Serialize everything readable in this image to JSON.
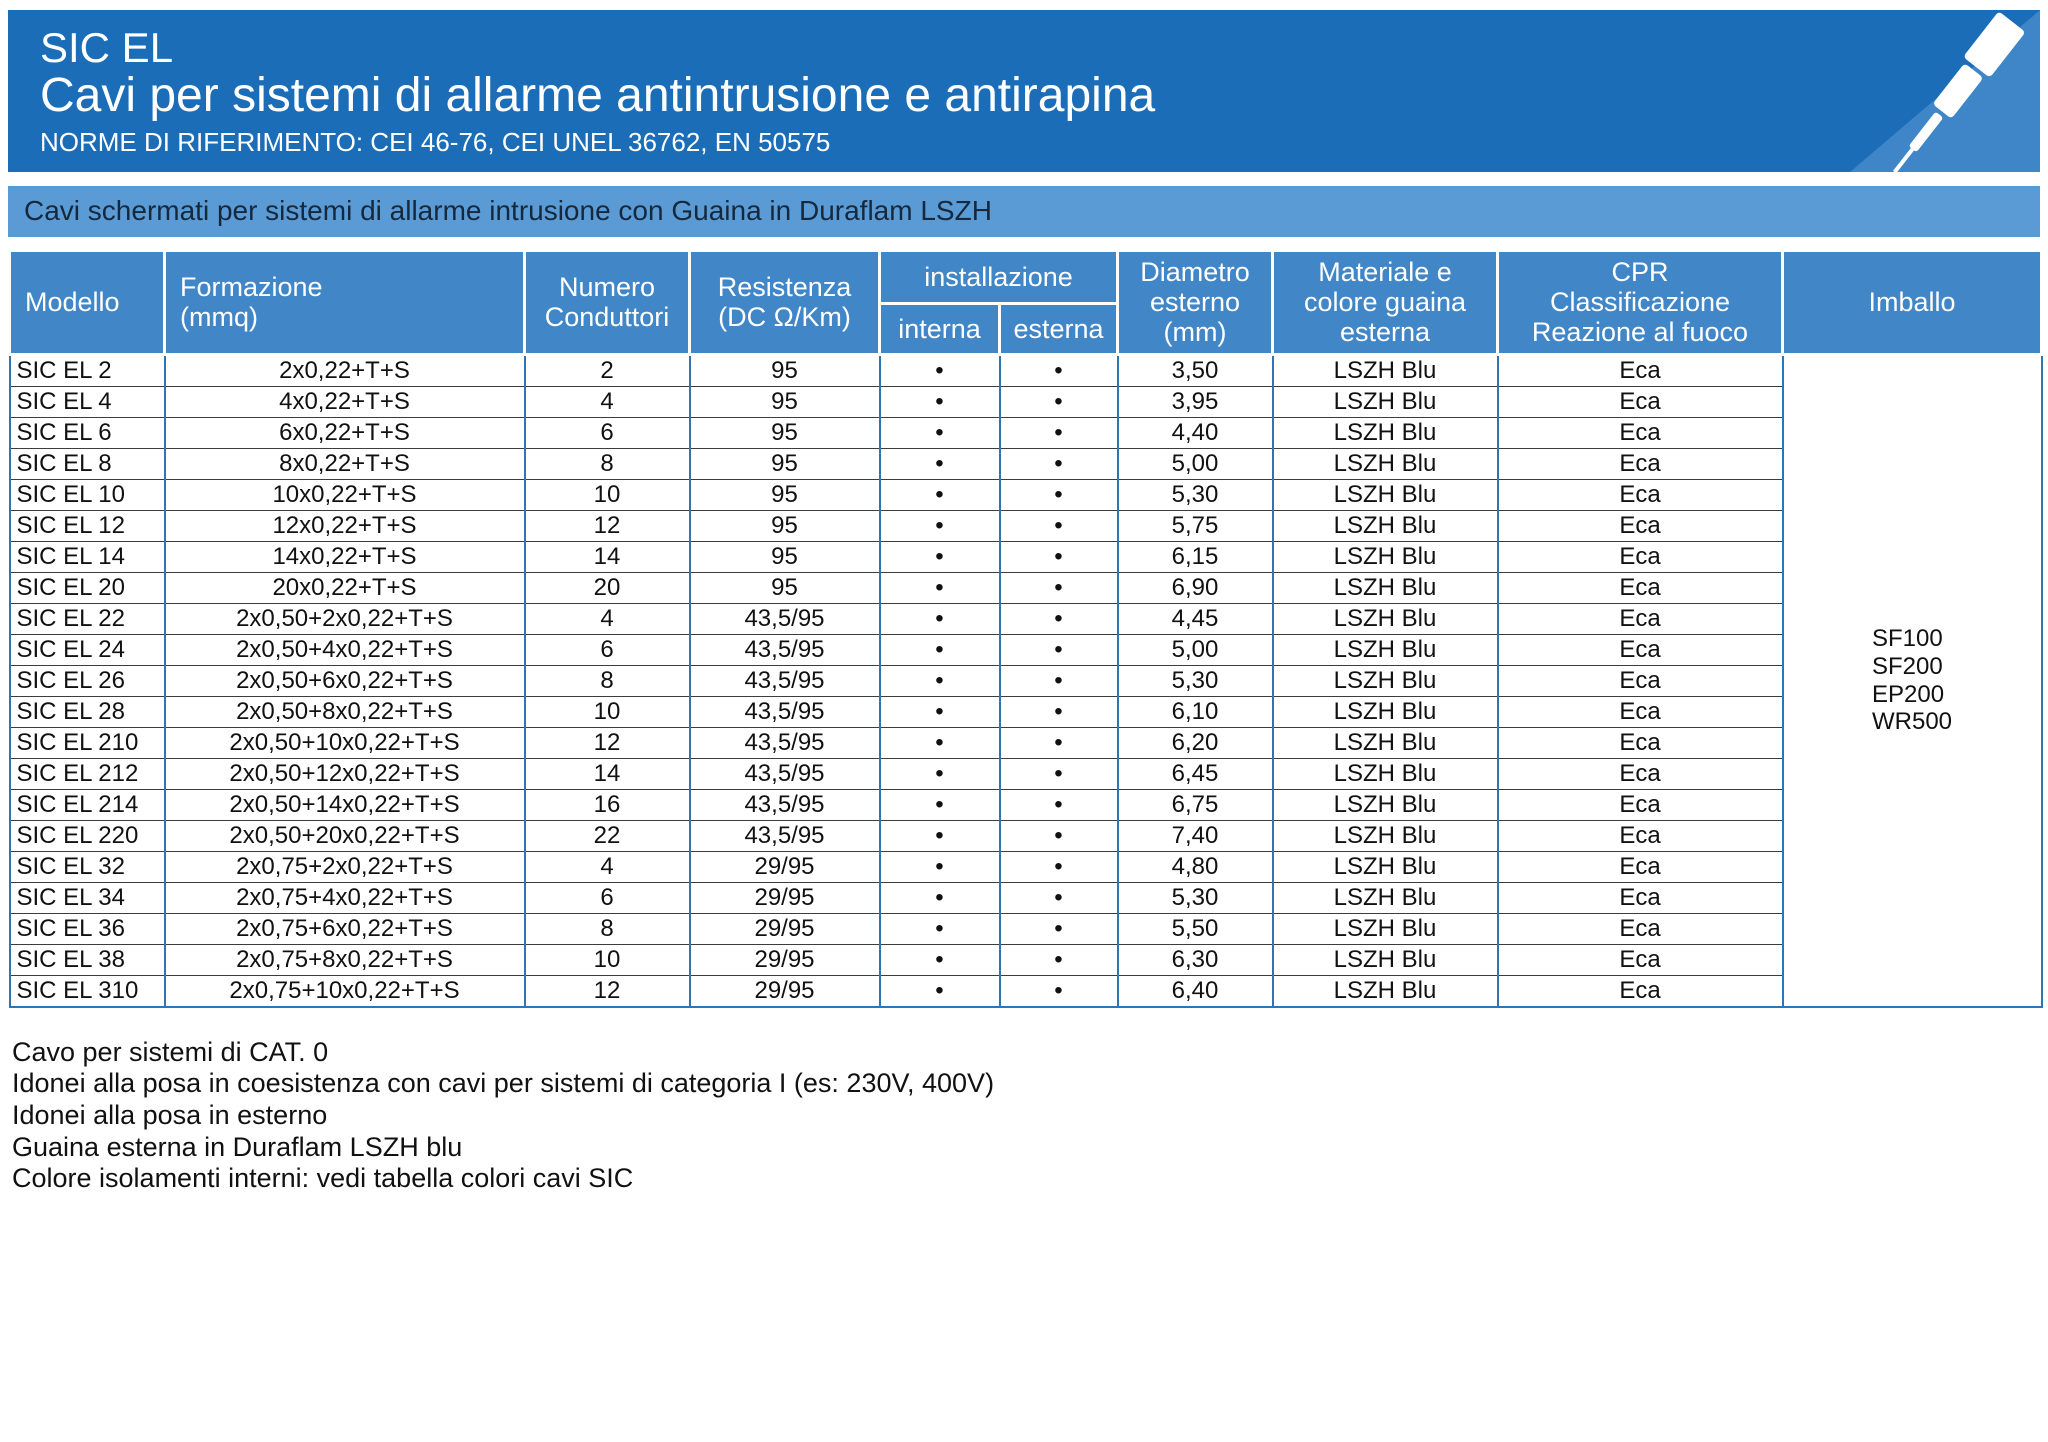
{
  "header": {
    "product": "SIC EL",
    "title": "Cavi per sistemi di allarme antintrusione e antirapina",
    "norms": "NORME DI RIFERIMENTO: CEI 46-76, CEI UNEL 36762, EN 50575"
  },
  "subbanner": "Cavi schermati per sistemi di allarme intrusione con Guaina in Duraflam LSZH",
  "colors": {
    "banner_blue": "#1b6db8",
    "subbanner_blue": "#5b9bd5",
    "table_header_blue": "#4186c6",
    "grid_blue": "#2e75b6"
  },
  "table": {
    "headers": {
      "modello": "Modello",
      "formazione": "Formazione\n(mmq)",
      "conduttori": "Numero\nConduttori",
      "resistenza": "Resistenza\n(DC Ω/Km)",
      "installazione": "installazione",
      "interna": "interna",
      "esterna": "esterna",
      "diametro": "Diametro\nesterno\n(mm)",
      "guaina": "Materiale e\ncolore guaina\nesterna",
      "cpr": "CPR\nClassificazione\nReazione al fuoco",
      "imballo": "Imballo"
    },
    "rows": [
      {
        "modello": "SIC EL 2",
        "formazione": "2x0,22+T+S",
        "conduttori": "2",
        "resistenza": "95",
        "interna": "•",
        "esterna": "•",
        "diametro": "3,50",
        "guaina": "LSZH Blu",
        "cpr": "Eca"
      },
      {
        "modello": "SIC EL 4",
        "formazione": "4x0,22+T+S",
        "conduttori": "4",
        "resistenza": "95",
        "interna": "•",
        "esterna": "•",
        "diametro": "3,95",
        "guaina": "LSZH Blu",
        "cpr": "Eca"
      },
      {
        "modello": "SIC EL 6",
        "formazione": "6x0,22+T+S",
        "conduttori": "6",
        "resistenza": "95",
        "interna": "•",
        "esterna": "•",
        "diametro": "4,40",
        "guaina": "LSZH Blu",
        "cpr": "Eca"
      },
      {
        "modello": "SIC EL 8",
        "formazione": "8x0,22+T+S",
        "conduttori": "8",
        "resistenza": "95",
        "interna": "•",
        "esterna": "•",
        "diametro": "5,00",
        "guaina": "LSZH Blu",
        "cpr": "Eca"
      },
      {
        "modello": "SIC EL 10",
        "formazione": "10x0,22+T+S",
        "conduttori": "10",
        "resistenza": "95",
        "interna": "•",
        "esterna": "•",
        "diametro": "5,30",
        "guaina": "LSZH Blu",
        "cpr": "Eca"
      },
      {
        "modello": "SIC EL 12",
        "formazione": "12x0,22+T+S",
        "conduttori": "12",
        "resistenza": "95",
        "interna": "•",
        "esterna": "•",
        "diametro": "5,75",
        "guaina": "LSZH Blu",
        "cpr": "Eca"
      },
      {
        "modello": "SIC EL 14",
        "formazione": "14x0,22+T+S",
        "conduttori": "14",
        "resistenza": "95",
        "interna": "•",
        "esterna": "•",
        "diametro": "6,15",
        "guaina": "LSZH Blu",
        "cpr": "Eca"
      },
      {
        "modello": "SIC EL 20",
        "formazione": "20x0,22+T+S",
        "conduttori": "20",
        "resistenza": "95",
        "interna": "•",
        "esterna": "•",
        "diametro": "6,90",
        "guaina": "LSZH Blu",
        "cpr": "Eca"
      },
      {
        "modello": "SIC EL 22",
        "formazione": "2x0,50+2x0,22+T+S",
        "conduttori": "4",
        "resistenza": "43,5/95",
        "interna": "•",
        "esterna": "•",
        "diametro": "4,45",
        "guaina": "LSZH Blu",
        "cpr": "Eca"
      },
      {
        "modello": "SIC EL 24",
        "formazione": "2x0,50+4x0,22+T+S",
        "conduttori": "6",
        "resistenza": "43,5/95",
        "interna": "•",
        "esterna": "•",
        "diametro": "5,00",
        "guaina": "LSZH Blu",
        "cpr": "Eca"
      },
      {
        "modello": "SIC EL 26",
        "formazione": "2x0,50+6x0,22+T+S",
        "conduttori": "8",
        "resistenza": "43,5/95",
        "interna": "•",
        "esterna": "•",
        "diametro": "5,30",
        "guaina": "LSZH Blu",
        "cpr": "Eca"
      },
      {
        "modello": "SIC EL 28",
        "formazione": "2x0,50+8x0,22+T+S",
        "conduttori": "10",
        "resistenza": "43,5/95",
        "interna": "•",
        "esterna": "•",
        "diametro": "6,10",
        "guaina": "LSZH Blu",
        "cpr": "Eca"
      },
      {
        "modello": "SIC EL 210",
        "formazione": "2x0,50+10x0,22+T+S",
        "conduttori": "12",
        "resistenza": "43,5/95",
        "interna": "•",
        "esterna": "•",
        "diametro": "6,20",
        "guaina": "LSZH Blu",
        "cpr": "Eca"
      },
      {
        "modello": "SIC EL 212",
        "formazione": "2x0,50+12x0,22+T+S",
        "conduttori": "14",
        "resistenza": "43,5/95",
        "interna": "•",
        "esterna": "•",
        "diametro": "6,45",
        "guaina": "LSZH Blu",
        "cpr": "Eca"
      },
      {
        "modello": "SIC EL 214",
        "formazione": "2x0,50+14x0,22+T+S",
        "conduttori": "16",
        "resistenza": "43,5/95",
        "interna": "•",
        "esterna": "•",
        "diametro": "6,75",
        "guaina": "LSZH Blu",
        "cpr": "Eca"
      },
      {
        "modello": "SIC EL 220",
        "formazione": "2x0,50+20x0,22+T+S",
        "conduttori": "22",
        "resistenza": "43,5/95",
        "interna": "•",
        "esterna": "•",
        "diametro": "7,40",
        "guaina": "LSZH Blu",
        "cpr": "Eca"
      },
      {
        "modello": "SIC EL 32",
        "formazione": "2x0,75+2x0,22+T+S",
        "conduttori": "4",
        "resistenza": "29/95",
        "interna": "•",
        "esterna": "•",
        "diametro": "4,80",
        "guaina": "LSZH Blu",
        "cpr": "Eca"
      },
      {
        "modello": "SIC EL 34",
        "formazione": "2x0,75+4x0,22+T+S",
        "conduttori": "6",
        "resistenza": "29/95",
        "interna": "•",
        "esterna": "•",
        "diametro": "5,30",
        "guaina": "LSZH Blu",
        "cpr": "Eca"
      },
      {
        "modello": "SIC EL 36",
        "formazione": "2x0,75+6x0,22+T+S",
        "conduttori": "8",
        "resistenza": "29/95",
        "interna": "•",
        "esterna": "•",
        "diametro": "5,50",
        "guaina": "LSZH Blu",
        "cpr": "Eca"
      },
      {
        "modello": "SIC EL 38",
        "formazione": "2x0,75+8x0,22+T+S",
        "conduttori": "10",
        "resistenza": "29/95",
        "interna": "•",
        "esterna": "•",
        "diametro": "6,30",
        "guaina": "LSZH Blu",
        "cpr": "Eca"
      },
      {
        "modello": "SIC EL 310",
        "formazione": "2x0,75+10x0,22+T+S",
        "conduttori": "12",
        "resistenza": "29/95",
        "interna": "•",
        "esterna": "•",
        "diametro": "6,40",
        "guaina": "LSZH Blu",
        "cpr": "Eca"
      }
    ],
    "imballo": [
      "SF100",
      "SF200",
      "EP200",
      "WR500"
    ]
  },
  "notes": [
    "Cavo per sistemi di CAT. 0",
    "Idonei alla posa in coesistenza con cavi per sistemi di categoria I (es: 230V, 400V)",
    "Idonei alla posa in esterno",
    "Guaina esterna in Duraflam LSZH blu",
    "Colore isolamenti interni: vedi tabella colori cavi SIC"
  ]
}
